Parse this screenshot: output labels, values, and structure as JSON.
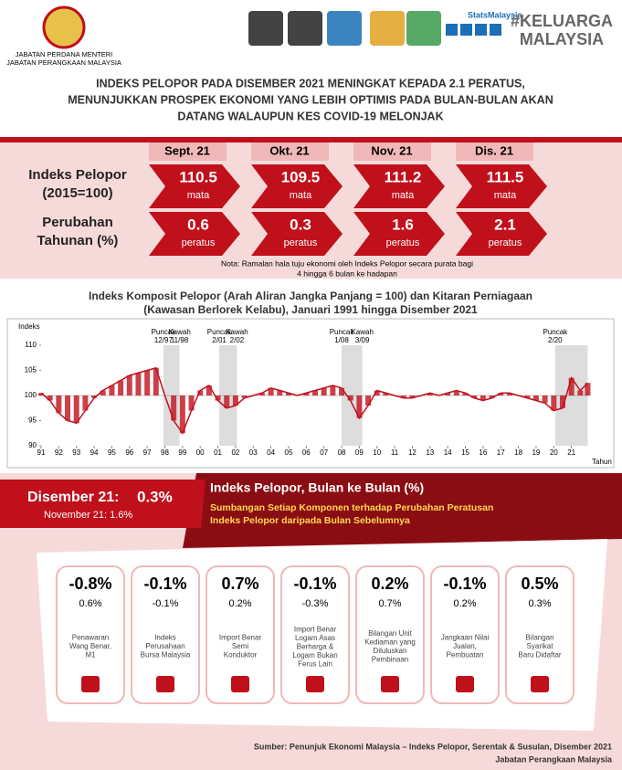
{
  "header": {
    "org": [
      "JABATAN PERDANA MENTERI",
      "JABATAN PERANGKAAN MALAYSIA"
    ],
    "brand": "StatsMalaysia",
    "hashtag": [
      "#KELUARGA",
      "MALAYSIA"
    ],
    "title": [
      "INDEKS PELOPOR PADA DISEMBER 2021 MENINGKAT KEPADA 2.1 PERATUS,",
      "MENUNJUKKAN PROSPEK EKONOMI YANG LEBIH OPTIMIS PADA BULAN-BULAN AKAN",
      "DATANG WALAUPUN KES COVID-19 MELONJAK"
    ]
  },
  "summary": {
    "rows": [
      [
        "Indeks Pelopor",
        "(2015=100)"
      ],
      [
        "Perubahan",
        "Tahunan (%)"
      ]
    ],
    "months": [
      {
        "name": "Sept. 21",
        "index": "110.5",
        "index_unit": "mata",
        "change": "0.6",
        "change_unit": "peratus"
      },
      {
        "name": "Okt. 21",
        "index": "109.5",
        "index_unit": "mata",
        "change": "0.3",
        "change_unit": "peratus"
      },
      {
        "name": "Nov. 21",
        "index": "111.2",
        "index_unit": "mata",
        "change": "1.6",
        "change_unit": "peratus"
      },
      {
        "name": "Dis. 21",
        "index": "111.5",
        "index_unit": "mata",
        "change": "2.1",
        "change_unit": "peratus"
      }
    ],
    "note": [
      "Nota: Ramalan hala tuju ekonomi oleh Indeks Pelopor secara purata bagi",
      "4 hingga 6 bulan ke hadapan"
    ]
  },
  "chart_data": {
    "type": "line",
    "title": [
      "Indeks Komposit Pelopor (Arah Aliran Jangka Panjang = 100) dan Kitaran Perniagaan",
      "(Kawasan Berlorek Kelabu), Januari 1991 hingga Disember 2021"
    ],
    "ylabel": "Indeks",
    "xlabel": "Tahun",
    "color": "#c0101c",
    "baseline": 100,
    "x": [
      1991,
      1991.5,
      1992,
      1992.5,
      1993,
      1993.5,
      1994,
      1994.5,
      1995,
      1995.5,
      1996,
      1996.5,
      1997,
      1997.5,
      1998,
      1998.5,
      1999,
      1999.5,
      2000,
      2000.5,
      2001,
      2001.5,
      2002,
      2002.5,
      2003,
      2003.5,
      2004,
      2004.5,
      2005,
      2005.5,
      2006,
      2006.5,
      2007,
      2007.5,
      2008,
      2008.5,
      2009,
      2009.5,
      2010,
      2010.5,
      2011,
      2011.5,
      2012,
      2012.5,
      2013,
      2013.5,
      2014,
      2014.5,
      2015,
      2015.5,
      2016,
      2016.5,
      2017,
      2017.5,
      2018,
      2018.5,
      2019,
      2019.5,
      2020,
      2020.5,
      2021,
      2021.5,
      2021.92
    ],
    "values": [
      100.5,
      99,
      96.5,
      95,
      94.5,
      97,
      99.5,
      101,
      102,
      103,
      104,
      104.5,
      105,
      105.5,
      100,
      95,
      92.5,
      97,
      101,
      102,
      99,
      97.5,
      98,
      99.5,
      100,
      100.5,
      101.5,
      101,
      100.5,
      100,
      100.5,
      101,
      101.5,
      102,
      101.5,
      99,
      95.5,
      98,
      101,
      100.5,
      100,
      99.5,
      99.5,
      100,
      100.5,
      100,
      100.5,
      101,
      100.5,
      99.5,
      99,
      99.5,
      100.5,
      100.5,
      100,
      99.5,
      99,
      98.5,
      97,
      97.5,
      103.5,
      101,
      102.5
    ],
    "shades": [
      {
        "from": 1997.92,
        "to": 1998.83
      },
      {
        "from": 2001.08,
        "to": 2002.08
      },
      {
        "from": 2008.0,
        "to": 2009.17
      },
      {
        "from": 2020.08,
        "to": 2021.92
      }
    ],
    "annotations": [
      {
        "x": 1997.92,
        "lines": [
          "Puncak",
          "12/97"
        ]
      },
      {
        "x": 1998.83,
        "lines": [
          "Kawah",
          "11/98"
        ]
      },
      {
        "x": 2001.08,
        "lines": [
          "Puncak",
          "2/01"
        ]
      },
      {
        "x": 2002.08,
        "lines": [
          "Kawah",
          "2/02"
        ]
      },
      {
        "x": 2008.0,
        "lines": [
          "Puncak",
          "1/08"
        ]
      },
      {
        "x": 2009.17,
        "lines": [
          "Kawah",
          "3/09"
        ]
      },
      {
        "x": 2020.08,
        "lines": [
          "Puncak",
          "2/20"
        ]
      }
    ],
    "xlim": [
      1991,
      2022
    ],
    "ylim": [
      90,
      110
    ],
    "yticks": [
      90,
      95,
      100,
      105,
      110
    ],
    "xticks": [
      {
        "value": 1991,
        "label": "91"
      },
      {
        "value": 1992,
        "label": "92"
      },
      {
        "value": 1993,
        "label": "93"
      },
      {
        "value": 1994,
        "label": "94"
      },
      {
        "value": 1995,
        "label": "95"
      },
      {
        "value": 1996,
        "label": "96"
      },
      {
        "value": 1997,
        "label": "97"
      },
      {
        "value": 1998,
        "label": "98"
      },
      {
        "value": 1999,
        "label": "99"
      },
      {
        "value": 2000,
        "label": "00"
      },
      {
        "value": 2001,
        "label": "01"
      },
      {
        "value": 2002,
        "label": "02"
      },
      {
        "value": 2003,
        "label": "03"
      },
      {
        "value": 2004,
        "label": "04"
      },
      {
        "value": 2005,
        "label": "05"
      },
      {
        "value": 2006,
        "label": "06"
      },
      {
        "value": 2007,
        "label": "07"
      },
      {
        "value": 2008,
        "label": "08"
      },
      {
        "value": 2009,
        "label": "09"
      },
      {
        "value": 2010,
        "label": "10"
      },
      {
        "value": 2011,
        "label": "11"
      },
      {
        "value": 2012,
        "label": "12"
      },
      {
        "value": 2013,
        "label": "13"
      },
      {
        "value": 2014,
        "label": "14"
      },
      {
        "value": 2015,
        "label": "15"
      },
      {
        "value": 2016,
        "label": "16"
      },
      {
        "value": 2017,
        "label": "17"
      },
      {
        "value": 2018,
        "label": "18"
      },
      {
        "value": 2019,
        "label": "19"
      },
      {
        "value": 2020,
        "label": "20"
      },
      {
        "value": 2021,
        "label": "21"
      }
    ]
  },
  "monthly": {
    "current_label": "Disember 21:",
    "current_value": "0.3%",
    "previous": "November 21: 1.6%",
    "title": "Indeks Pelopor, Bulan ke Bulan (%)",
    "subtitle": [
      "Sumbangan Setiap Komponen terhadap Perubahan Peratusan",
      "Indeks Pelopor daripada Bulan Sebelumnya"
    ],
    "components": [
      {
        "value": "-0.8%",
        "previous": "0.6%",
        "label": [
          "Penawaran",
          "Wang Benar,",
          "M1"
        ]
      },
      {
        "value": "-0.1%",
        "previous": "-0.1%",
        "label": [
          "Indeks",
          "Perusahaan",
          "Bursa Malaysia"
        ]
      },
      {
        "value": "0.7%",
        "previous": "0.2%",
        "label": [
          "Import Benar",
          "Semi",
          "Konduktor"
        ]
      },
      {
        "value": "-0.1%",
        "previous": "-0.3%",
        "label": [
          "Import Benar",
          "Logam Asas",
          "Berharga &",
          "Logam Bukan",
          "Ferus Lain"
        ]
      },
      {
        "value": "0.2%",
        "previous": "0.7%",
        "label": [
          "Bilangan Unit",
          "Kediaman yang",
          "Diluluskan",
          "Pembinaan"
        ]
      },
      {
        "value": "-0.1%",
        "previous": "0.2%",
        "label": [
          "Jangkaan Nilai",
          "Jualan,",
          "Pembuatan"
        ]
      },
      {
        "value": "0.5%",
        "previous": "0.3%",
        "label": [
          "Bilangan",
          "Syarikat",
          "Baru Didaftar"
        ]
      }
    ]
  },
  "footer": [
    "Sumber: Penunjuk Ekonomi Malaysia – Indeks Pelopor, Serentak & Susulan, Disember 2021",
    "Jabatan Perangkaan Malaysia"
  ]
}
